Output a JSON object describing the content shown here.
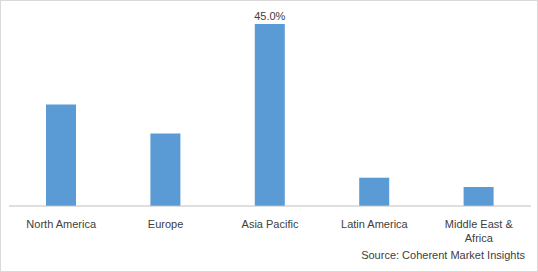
{
  "chart_data": {
    "type": "bar",
    "categories": [
      "North America",
      "Europe",
      "Asia Pacific",
      "Latin America",
      "Middle East & Africa"
    ],
    "values": [
      25.1,
      17.9,
      45.0,
      7.0,
      4.7
    ],
    "value_labels": [
      null,
      null,
      "45.0%",
      null,
      null
    ],
    "data_labels": true,
    "color": "#5b9bd5",
    "tick_labels": "x",
    "grid": false,
    "source": "Source: Coherent Market Insights"
  }
}
